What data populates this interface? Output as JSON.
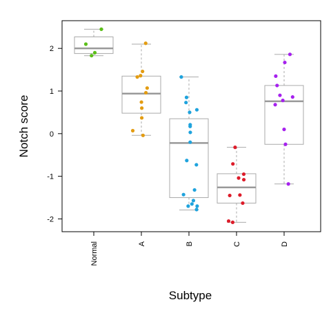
{
  "chart_data": {
    "type": "boxplot",
    "title": "",
    "xlabel": "Subtype",
    "ylabel": "Notch score",
    "ylim": [
      -2.3,
      2.65
    ],
    "yticks": [
      -2,
      -1,
      0,
      1,
      2
    ],
    "ytick_labels": [
      "-2",
      "-1",
      "0",
      "1",
      "2"
    ],
    "categories": [
      "Normal",
      "A",
      "B",
      "C",
      "D"
    ],
    "colors": {
      "Normal": "#5cbf1a",
      "A": "#e39c12",
      "B": "#1fa3dd",
      "C": "#dd1c2a",
      "D": "#a621ee",
      "box": "#aaaaaa",
      "median": "#999999"
    },
    "boxes": [
      {
        "name": "Normal",
        "whisker_low": 1.83,
        "q1": 1.88,
        "median": 2.0,
        "q3": 2.27,
        "whisker_high": 2.45
      },
      {
        "name": "A",
        "whisker_low": -0.04,
        "q1": 0.48,
        "median": 0.94,
        "q3": 1.35,
        "whisker_high": 2.1
      },
      {
        "name": "B",
        "whisker_low": -1.79,
        "q1": -1.5,
        "median": -0.22,
        "q3": 0.35,
        "whisker_high": 1.33
      },
      {
        "name": "C",
        "whisker_low": -2.08,
        "q1": -1.63,
        "median": -1.26,
        "q3": -0.94,
        "whisker_high": -0.32
      },
      {
        "name": "D",
        "whisker_low": -1.18,
        "q1": -0.25,
        "median": 0.76,
        "q3": 1.13,
        "whisker_high": 1.86
      }
    ],
    "points": [
      {
        "group": "Normal",
        "values": [
          2.45,
          2.1,
          1.9,
          1.83
        ]
      },
      {
        "group": "A",
        "values": [
          2.12,
          1.46,
          1.36,
          1.33,
          1.07,
          0.96,
          0.74,
          0.6,
          0.37,
          0.07,
          -0.04
        ]
      },
      {
        "group": "B",
        "values": [
          1.33,
          0.85,
          0.73,
          0.56,
          0.5,
          0.21,
          0.17,
          0.03,
          -0.2,
          -0.63,
          -0.73,
          -1.32,
          -1.43,
          -1.57,
          -1.65,
          -1.7,
          -1.7,
          -1.78
        ]
      },
      {
        "group": "C",
        "values": [
          -0.32,
          -0.71,
          -0.95,
          -1.04,
          -1.08,
          -1.44,
          -1.45,
          -1.63,
          -2.05,
          -2.08
        ]
      },
      {
        "group": "D",
        "values": [
          1.86,
          1.67,
          1.35,
          1.13,
          0.9,
          0.86,
          0.78,
          0.68,
          0.1,
          -0.25,
          -1.18
        ]
      }
    ]
  }
}
